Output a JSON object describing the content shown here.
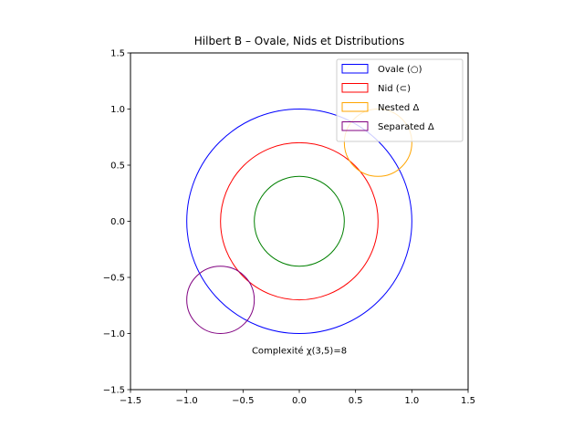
{
  "chart_data": {
    "type": "scatter",
    "title": "Hilbert B – Ovale, Nids et Distributions",
    "xlabel": "",
    "ylabel": "",
    "xlim": [
      -1.5,
      1.5
    ],
    "ylim": [
      -1.5,
      1.5
    ],
    "aspect": "equal",
    "grid": false,
    "x_ticks": [
      -1.5,
      -1.0,
      -0.5,
      0.0,
      0.5,
      1.0,
      1.5
    ],
    "x_tick_labels": [
      "−1.5",
      "−1.0",
      "−0.5",
      "0.0",
      "0.5",
      "1.0",
      "1.5"
    ],
    "y_ticks": [
      -1.5,
      -1.0,
      -0.5,
      0.0,
      0.5,
      1.0,
      1.5
    ],
    "y_tick_labels": [
      "−1.5",
      "−1.0",
      "−0.5",
      "0.0",
      "0.5",
      "1.0",
      "1.5"
    ],
    "legend_position": "top-right",
    "circles": [
      {
        "name": "Ovale (○)",
        "cx": 0.0,
        "cy": 0.0,
        "r": 1.0,
        "color": "#0000ff",
        "in_legend": true
      },
      {
        "name": "Nid (⊂)",
        "cx": 0.0,
        "cy": 0.0,
        "r": 0.7,
        "color": "#ff0000",
        "in_legend": true
      },
      {
        "name": "",
        "cx": 0.0,
        "cy": 0.0,
        "r": 0.4,
        "color": "#008000",
        "in_legend": false
      },
      {
        "name": "Nested Δ",
        "cx": 0.7,
        "cy": 0.7,
        "r": 0.3,
        "color": "#ffa500",
        "in_legend": true
      },
      {
        "name": "Separated Δ",
        "cx": -0.7,
        "cy": -0.7,
        "r": 0.3,
        "color": "#800080",
        "in_legend": true
      }
    ],
    "annotations": [
      {
        "text": "Complexité χ(3,5)=8",
        "x": 0.0,
        "y": -1.15
      }
    ]
  }
}
